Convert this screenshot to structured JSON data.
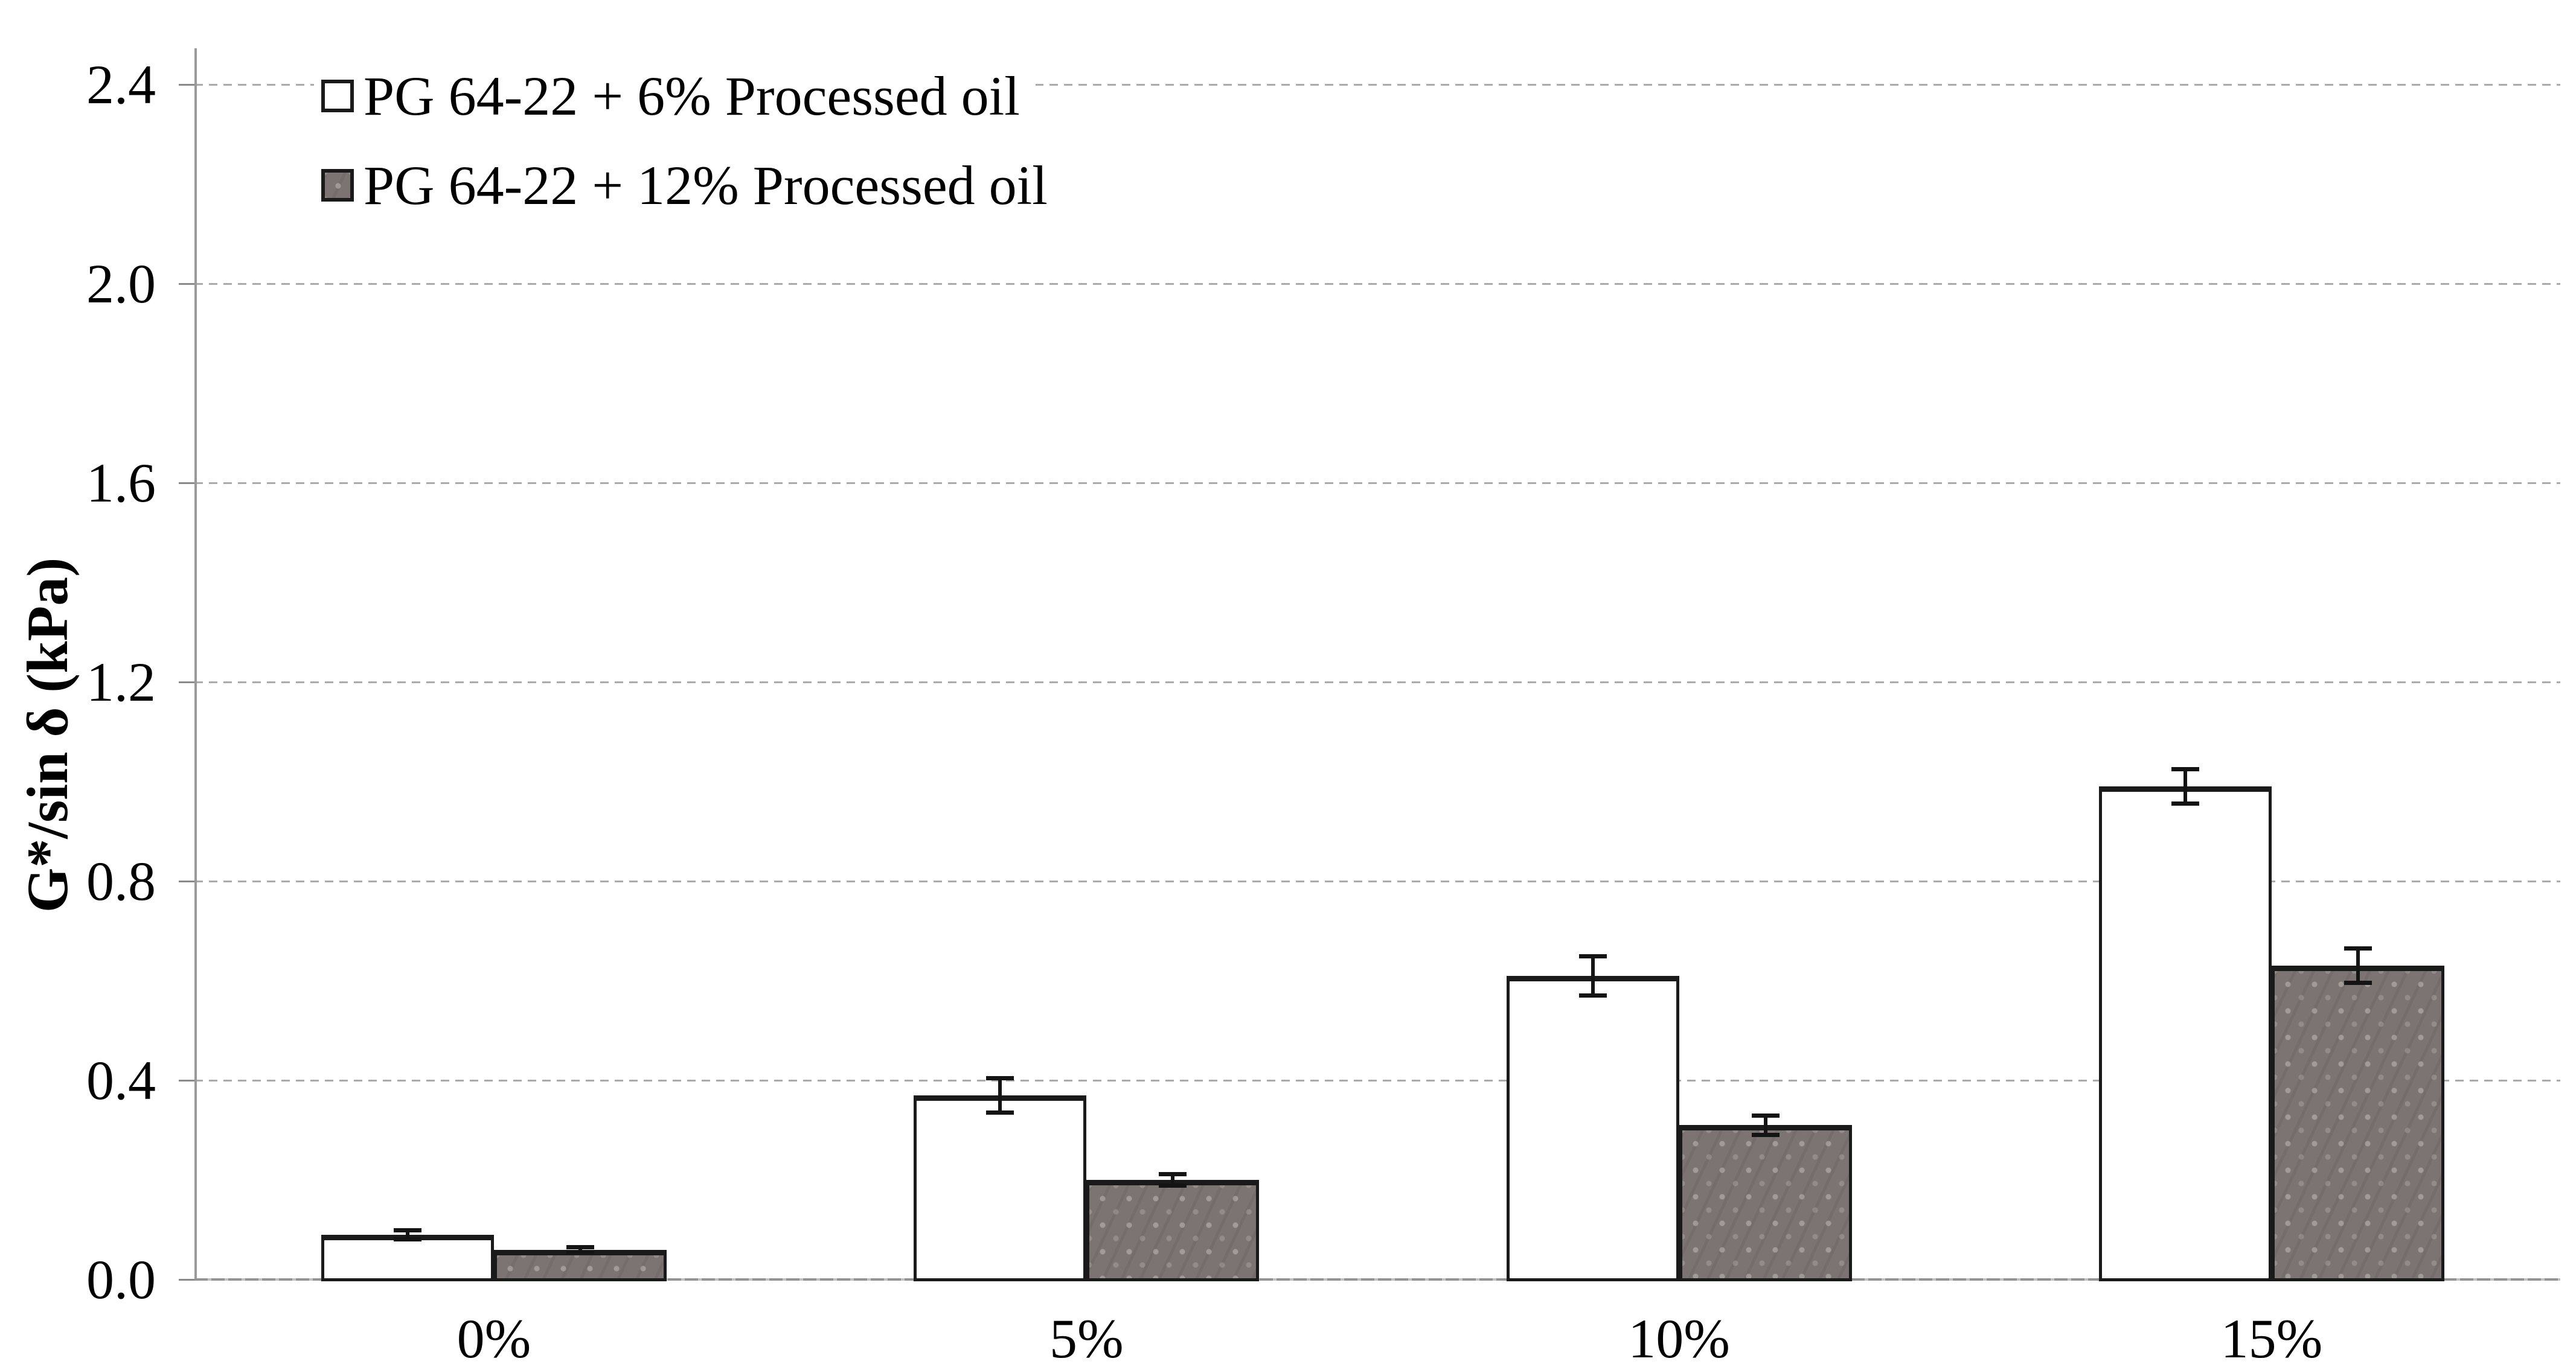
{
  "chart_data": {
    "type": "bar",
    "title": "",
    "xlabel": "",
    "ylabel": "G*/sin δ (kPa)",
    "categories": [
      "0%",
      "5%",
      "10%",
      "15%"
    ],
    "series": [
      {
        "name": "PG 64-22 + 6% Processed oil",
        "fill": "white",
        "values": [
          0.09,
          0.37,
          0.61,
          0.99
        ],
        "errors": [
          0.01,
          0.035,
          0.04,
          0.035
        ]
      },
      {
        "name": "PG 64-22 + 12% Processed oil",
        "fill": "gray",
        "values": [
          0.06,
          0.2,
          0.31,
          0.63
        ],
        "errors": [
          0.005,
          0.012,
          0.02,
          0.035
        ]
      }
    ],
    "y_ticks": [
      0.0,
      0.4,
      0.8,
      1.2,
      1.6,
      2.0,
      2.4
    ],
    "y_tick_labels": [
      "0.0",
      "0.4",
      "0.8",
      "1.2",
      "1.6",
      "2.0",
      "2.4"
    ],
    "ylim": [
      0,
      2.55
    ],
    "grid": "horizontal-dashed",
    "legend_position": "top-left",
    "error_bars": true,
    "colors": {
      "white_bar_fill": "#ffffff",
      "gray_bar_fill": "#7b7472",
      "bar_outline": "#1a1a1a",
      "gridline": "#ababab",
      "axis": "#9a9a9a",
      "text": "#000000"
    }
  }
}
